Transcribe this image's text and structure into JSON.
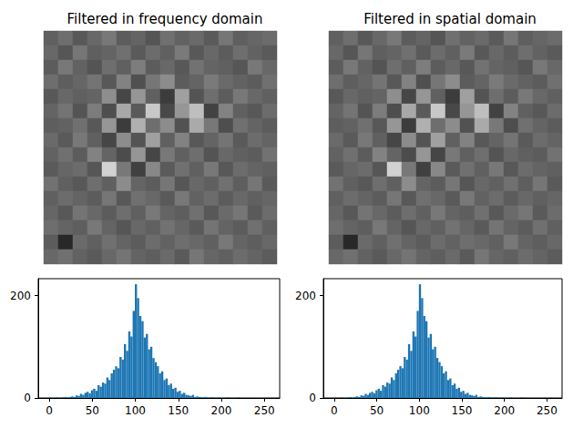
{
  "chart_data": [
    {
      "type": "heatmap",
      "title": "Filtered in frequency domain",
      "tick_labels": false,
      "zlim": [
        0,
        255
      ],
      "cells": [
        [
          96,
          110,
          88,
          104,
          120,
          92,
          100,
          85,
          112,
          98,
          106,
          90,
          118,
          95,
          102,
          108
        ],
        [
          104,
          86,
          118,
          95,
          100,
          112,
          90,
          108,
          96,
          122,
          88,
          104,
          92,
          110,
          98,
          90
        ],
        [
          92,
          120,
          98,
          84,
          110,
          96,
          125,
          92,
          104,
          88,
          114,
          100,
          96,
          86,
          120,
          104
        ],
        [
          110,
          94,
          102,
          116,
          88,
          130,
          80,
          118,
          140,
          92,
          100,
          122,
          106,
          98,
          92,
          112
        ],
        [
          88,
          104,
          96,
          100,
          142,
          70,
          150,
          96,
          60,
          160,
          84,
          110,
          92,
          120,
          104,
          96
        ],
        [
          100,
          116,
          84,
          124,
          78,
          168,
          90,
          200,
          72,
          150,
          190,
          66,
          130,
          96,
          88,
          108
        ],
        [
          94,
          98,
          112,
          88,
          150,
          60,
          176,
          110,
          140,
          82,
          170,
          120,
          78,
          112,
          100,
          92
        ],
        [
          106,
          90,
          120,
          96,
          70,
          140,
          84,
          160,
          96,
          130,
          88,
          100,
          116,
          90,
          108,
          100
        ],
        [
          98,
          112,
          92,
          130,
          100,
          76,
          150,
          70,
          120,
          96,
          110,
          84,
          104,
          96,
          92,
          114
        ],
        [
          90,
          102,
          108,
          86,
          210,
          120,
          64,
          136,
          90,
          112,
          96,
          120,
          88,
          108,
          100,
          96
        ],
        [
          114,
          96,
          88,
          110,
          96,
          140,
          100,
          92,
          118,
          86,
          104,
          96,
          112,
          94,
          118,
          90
        ],
        [
          96,
          108,
          100,
          92,
          118,
          88,
          112,
          104,
          90,
          120,
          98,
          108,
          92,
          104,
          96,
          102
        ],
        [
          102,
          88,
          116,
          104,
          92,
          110,
          96,
          120,
          100,
          94,
          112,
          88,
          106,
          118,
          90,
          108
        ],
        [
          110,
          100,
          94,
          120,
          100,
          86,
          104,
          96,
          114,
          102,
          90,
          116,
          100,
          92,
          112,
          96
        ],
        [
          92,
          40,
          106,
          96,
          112,
          100,
          92,
          108,
          98,
          110,
          104,
          96,
          120,
          100,
          94,
          104
        ],
        [
          104,
          112,
          98,
          90,
          104,
          116,
          100,
          94,
          106,
          90,
          118,
          102,
          96,
          108,
          100,
          92
        ]
      ]
    },
    {
      "type": "heatmap",
      "title": "Filtered in spatial domain",
      "tick_labels": false,
      "zlim": [
        0,
        255
      ],
      "cells": [
        [
          96,
          110,
          88,
          104,
          120,
          92,
          100,
          85,
          112,
          98,
          106,
          90,
          118,
          95,
          102,
          108
        ],
        [
          104,
          86,
          118,
          95,
          100,
          112,
          90,
          108,
          96,
          122,
          88,
          104,
          92,
          110,
          98,
          90
        ],
        [
          92,
          120,
          98,
          84,
          110,
          96,
          125,
          92,
          104,
          88,
          114,
          100,
          96,
          86,
          120,
          104
        ],
        [
          110,
          94,
          102,
          116,
          88,
          130,
          80,
          118,
          140,
          92,
          100,
          122,
          106,
          98,
          92,
          112
        ],
        [
          88,
          104,
          96,
          100,
          142,
          70,
          150,
          96,
          60,
          160,
          84,
          110,
          92,
          120,
          104,
          96
        ],
        [
          100,
          116,
          84,
          124,
          78,
          168,
          90,
          200,
          72,
          150,
          190,
          66,
          130,
          96,
          88,
          108
        ],
        [
          94,
          98,
          112,
          88,
          150,
          60,
          176,
          110,
          140,
          82,
          170,
          120,
          78,
          112,
          100,
          92
        ],
        [
          106,
          90,
          120,
          96,
          70,
          140,
          84,
          160,
          96,
          130,
          88,
          100,
          116,
          90,
          108,
          100
        ],
        [
          98,
          112,
          92,
          130,
          100,
          76,
          150,
          70,
          120,
          96,
          110,
          84,
          104,
          96,
          92,
          114
        ],
        [
          90,
          102,
          108,
          86,
          210,
          120,
          64,
          136,
          90,
          112,
          96,
          120,
          88,
          108,
          100,
          96
        ],
        [
          114,
          96,
          88,
          110,
          96,
          140,
          100,
          92,
          118,
          86,
          104,
          96,
          112,
          94,
          118,
          90
        ],
        [
          96,
          108,
          100,
          92,
          118,
          88,
          112,
          104,
          90,
          120,
          98,
          108,
          92,
          104,
          96,
          102
        ],
        [
          102,
          88,
          116,
          104,
          92,
          110,
          96,
          120,
          100,
          94,
          112,
          88,
          106,
          118,
          90,
          108
        ],
        [
          110,
          100,
          94,
          120,
          100,
          86,
          104,
          96,
          114,
          102,
          90,
          116,
          100,
          92,
          112,
          96
        ],
        [
          92,
          40,
          106,
          96,
          112,
          100,
          92,
          108,
          98,
          110,
          104,
          96,
          120,
          100,
          94,
          104
        ],
        [
          104,
          112,
          98,
          90,
          104,
          116,
          100,
          94,
          106,
          90,
          118,
          102,
          96,
          108,
          100,
          92
        ]
      ]
    },
    {
      "type": "histogram",
      "color": "#1f77b4",
      "xlim": [
        -12.75,
        267.75
      ],
      "xticks": [
        0,
        50,
        100,
        150,
        200,
        250
      ],
      "ylim": [
        0,
        233
      ],
      "yticks": [
        0,
        200
      ],
      "bins": [
        0,
        2.55,
        5.1,
        7.65,
        10.2,
        12.75,
        15.3,
        17.85,
        20.4,
        22.95,
        25.5,
        28.05,
        30.6,
        33.15,
        35.7,
        38.25,
        40.8,
        43.35,
        45.9,
        48.45,
        51,
        53.55,
        56.1,
        58.65,
        61.2,
        63.75,
        66.3,
        68.85,
        71.4,
        73.95,
        76.5,
        79.05,
        81.6,
        84.15,
        86.7,
        89.25,
        91.8,
        94.35,
        96.9,
        99.45,
        102,
        104.55,
        107.1,
        109.65,
        112.2,
        114.75,
        117.3,
        119.85,
        122.4,
        124.95,
        127.5,
        130.05,
        132.6,
        135.15,
        137.7,
        140.25,
        142.8,
        145.35,
        147.9,
        150.45,
        153,
        155.55,
        158.1,
        160.65,
        163.2,
        165.75,
        168.3,
        170.85,
        173.4,
        175.95,
        178.5,
        181.05,
        183.6,
        186.15,
        188.7,
        191.25,
        193.8,
        196.35,
        198.9,
        201.45,
        204,
        206.55,
        209.1,
        211.65,
        214.2,
        216.75,
        219.3,
        221.85,
        224.4,
        226.95,
        229.5,
        232.05,
        234.6,
        237.15,
        239.7,
        242.25,
        244.8,
        247.35,
        249.9,
        252.45,
        255
      ],
      "values": [
        1,
        0,
        0,
        1,
        0,
        0,
        1,
        2,
        0,
        2,
        3,
        2,
        5,
        4,
        8,
        6,
        10,
        12,
        9,
        15,
        18,
        14,
        25,
        22,
        30,
        28,
        40,
        35,
        48,
        55,
        62,
        58,
        80,
        75,
        105,
        92,
        130,
        120,
        170,
        222,
        195,
        160,
        150,
        118,
        125,
        95,
        100,
        78,
        70,
        62,
        48,
        52,
        35,
        38,
        25,
        28,
        18,
        20,
        12,
        14,
        8,
        10,
        6,
        5,
        4,
        6,
        2,
        3,
        2,
        1,
        1,
        2,
        0,
        1,
        1,
        0,
        0,
        1,
        0,
        0,
        0,
        1,
        0,
        0,
        0,
        0,
        1,
        0,
        0,
        0,
        0,
        0,
        0,
        0,
        0,
        0,
        0,
        0,
        0,
        0
      ]
    },
    {
      "type": "histogram",
      "color": "#1f77b4",
      "xlim": [
        -12.75,
        267.75
      ],
      "xticks": [
        0,
        50,
        100,
        150,
        200,
        250
      ],
      "ylim": [
        0,
        233
      ],
      "yticks": [
        0,
        200
      ],
      "bins": [
        0,
        2.55,
        5.1,
        7.65,
        10.2,
        12.75,
        15.3,
        17.85,
        20.4,
        22.95,
        25.5,
        28.05,
        30.6,
        33.15,
        35.7,
        38.25,
        40.8,
        43.35,
        45.9,
        48.45,
        51,
        53.55,
        56.1,
        58.65,
        61.2,
        63.75,
        66.3,
        68.85,
        71.4,
        73.95,
        76.5,
        79.05,
        81.6,
        84.15,
        86.7,
        89.25,
        91.8,
        94.35,
        96.9,
        99.45,
        102,
        104.55,
        107.1,
        109.65,
        112.2,
        114.75,
        117.3,
        119.85,
        122.4,
        124.95,
        127.5,
        130.05,
        132.6,
        135.15,
        137.7,
        140.25,
        142.8,
        145.35,
        147.9,
        150.45,
        153,
        155.55,
        158.1,
        160.65,
        163.2,
        165.75,
        168.3,
        170.85,
        173.4,
        175.95,
        178.5,
        181.05,
        183.6,
        186.15,
        188.7,
        191.25,
        193.8,
        196.35,
        198.9,
        201.45,
        204,
        206.55,
        209.1,
        211.65,
        214.2,
        216.75,
        219.3,
        221.85,
        224.4,
        226.95,
        229.5,
        232.05,
        234.6,
        237.15,
        239.7,
        242.25,
        244.8,
        247.35,
        249.9,
        252.45,
        255
      ],
      "values": [
        1,
        0,
        0,
        1,
        0,
        0,
        1,
        2,
        0,
        2,
        3,
        2,
        5,
        4,
        8,
        6,
        10,
        12,
        9,
        15,
        18,
        14,
        25,
        22,
        30,
        28,
        40,
        35,
        48,
        55,
        62,
        58,
        80,
        75,
        105,
        92,
        130,
        120,
        170,
        222,
        195,
        160,
        150,
        118,
        125,
        95,
        100,
        78,
        70,
        62,
        48,
        52,
        35,
        38,
        25,
        28,
        18,
        20,
        12,
        14,
        8,
        10,
        6,
        5,
        4,
        6,
        2,
        3,
        2,
        1,
        1,
        2,
        0,
        1,
        1,
        0,
        0,
        1,
        0,
        0,
        0,
        1,
        0,
        0,
        0,
        0,
        1,
        0,
        0,
        0,
        0,
        0,
        0,
        0,
        0,
        0,
        0,
        0,
        0,
        0
      ]
    }
  ]
}
